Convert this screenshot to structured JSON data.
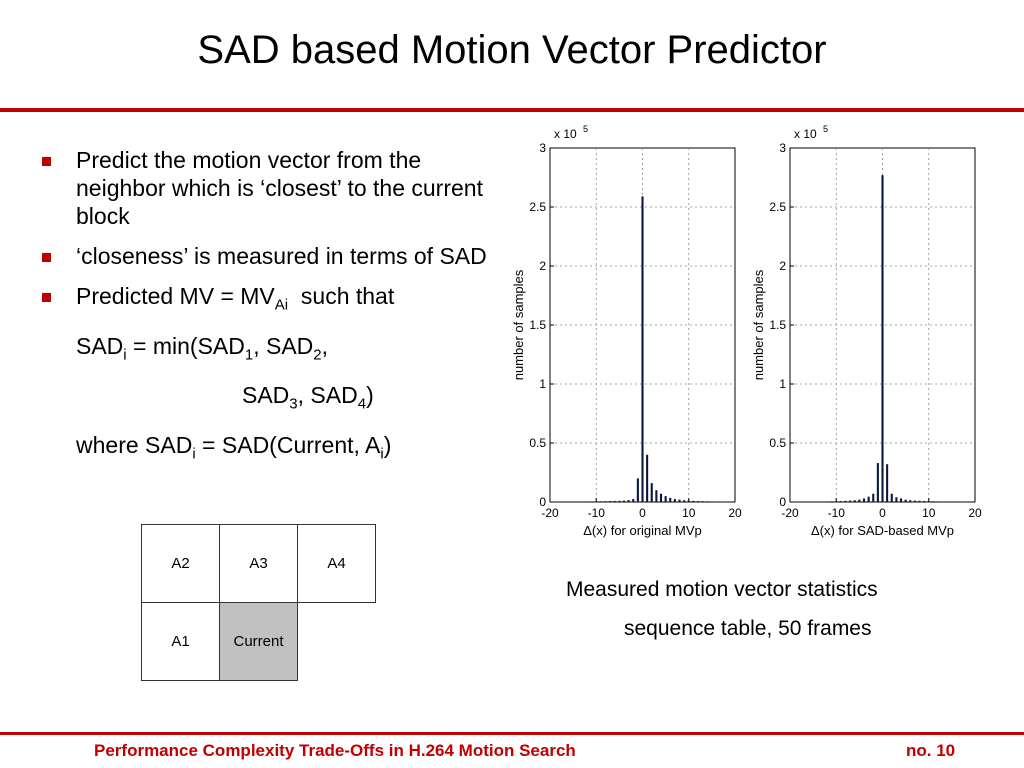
{
  "slide": {
    "title": "SAD based Motion Vector Predictor",
    "bullets": {
      "b1": "Predict the motion vector from the neighbor which is ‘closest’ to the current block",
      "b2": "‘closeness’ is measured in terms of SAD",
      "b3_text": "Predicted MV = MV",
      "b3_sub": "Ai",
      "b3_tail": "  such that"
    },
    "formula": {
      "l1_a": "SAD",
      "l1_sub_i": "i",
      "l1_b": " = min(SAD",
      "l1_sub_1": "1",
      "l1_c": ", SAD",
      "l1_sub_2": "2",
      "l1_d": ",",
      "l2_a": "SAD",
      "l2_sub_3": "3",
      "l2_b": ", SAD",
      "l2_sub_4": "4",
      "l2_c": ")",
      "l3_a": "where SAD",
      "l3_sub_i": "i",
      "l3_b": " = SAD(Current, A",
      "l3_sub_i2": "i",
      "l3_c": ")"
    },
    "grid": {
      "a2": "A2",
      "a3": "A3",
      "a4": "A4",
      "a1": "A1",
      "current": "Current"
    },
    "caption": {
      "line1": "Measured motion vector statistics",
      "line2": "sequence table, 50 frames"
    },
    "footer": {
      "left": "Performance Complexity Trade-Offs in H.264 Motion Search",
      "right": "no. 10"
    }
  },
  "colors": {
    "accent": "#c00000",
    "bar": "#0a1640",
    "current_cell": "#c0c0c0"
  },
  "chart_data": [
    {
      "type": "bar",
      "xlabel": "Δ(x) for original MVp",
      "ylabel": "number of samples",
      "multiplier": "x 10",
      "multiplier_exp": "5",
      "xlim": [
        -20,
        20
      ],
      "ylim": [
        0,
        3
      ],
      "grid": true,
      "xticks": [
        "-20",
        "-10",
        "0",
        "10",
        "20"
      ],
      "yticks": [
        "0",
        "0.5",
        "1",
        "1.5",
        "2",
        "2.5",
        "3"
      ],
      "x": [
        -19,
        -18,
        -17,
        -16,
        -15,
        -14,
        -13,
        -12,
        -11,
        -10,
        -9,
        -8,
        -7,
        -6,
        -5,
        -4,
        -3,
        -2,
        -1,
        0,
        1,
        2,
        3,
        4,
        5,
        6,
        7,
        8,
        9,
        10,
        11,
        12,
        13,
        14,
        15,
        16,
        17,
        18,
        19
      ],
      "values": [
        0.002,
        0.002,
        0.003,
        0.003,
        0.003,
        0.004,
        0.004,
        0.005,
        0.005,
        0.006,
        0.006,
        0.007,
        0.008,
        0.009,
        0.01,
        0.012,
        0.016,
        0.025,
        0.2,
        2.59,
        0.4,
        0.16,
        0.1,
        0.07,
        0.05,
        0.035,
        0.025,
        0.02,
        0.015,
        0.012,
        0.01,
        0.008,
        0.007,
        0.006,
        0.005,
        0.004,
        0.004,
        0.003,
        0.002
      ]
    },
    {
      "type": "bar",
      "xlabel": "Δ(x) for SAD-based MVp",
      "ylabel": "number of samples",
      "multiplier": "x 10",
      "multiplier_exp": "5",
      "xlim": [
        -20,
        20
      ],
      "ylim": [
        0,
        3
      ],
      "grid": true,
      "xticks": [
        "-20",
        "-10",
        "0",
        "10",
        "20"
      ],
      "yticks": [
        "0",
        "0.5",
        "1",
        "1.5",
        "2",
        "2.5",
        "3"
      ],
      "x": [
        -19,
        -18,
        -17,
        -16,
        -15,
        -14,
        -13,
        -12,
        -11,
        -10,
        -9,
        -8,
        -7,
        -6,
        -5,
        -4,
        -3,
        -2,
        -1,
        0,
        1,
        2,
        3,
        4,
        5,
        6,
        7,
        8,
        9,
        10,
        11,
        12,
        13,
        14,
        15,
        16,
        17,
        18,
        19
      ],
      "values": [
        0.002,
        0.002,
        0.003,
        0.003,
        0.003,
        0.004,
        0.004,
        0.005,
        0.006,
        0.007,
        0.008,
        0.01,
        0.012,
        0.015,
        0.02,
        0.03,
        0.045,
        0.07,
        0.33,
        2.77,
        0.32,
        0.07,
        0.04,
        0.03,
        0.02,
        0.015,
        0.012,
        0.01,
        0.008,
        0.007,
        0.006,
        0.005,
        0.004,
        0.004,
        0.003,
        0.003,
        0.002,
        0.002,
        0.002
      ]
    }
  ]
}
